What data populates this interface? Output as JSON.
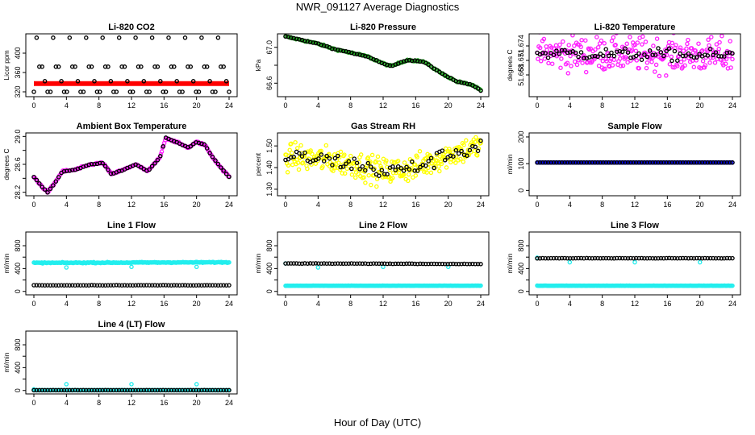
{
  "figure": {
    "title": "NWR_091127  Average Diagnostics",
    "xlabel": "Hour of Day (UTC)"
  },
  "chart_data": [
    {
      "type": "scatter",
      "title": "Li-820 CO2",
      "ylabel": "Licor ppm",
      "xlim": [
        0,
        24
      ],
      "xticks": [
        0,
        4,
        8,
        12,
        16,
        20,
        24
      ],
      "ylim": [
        310,
        440
      ],
      "yticks": [
        320,
        360,
        400
      ],
      "ytick_labels": [
        "320",
        "360",
        "400"
      ],
      "series": [
        {
          "color": "#ff0000",
          "style": "thickline",
          "pattern": "flat",
          "x": [
            0,
            24
          ],
          "y": [
            337,
            337
          ]
        },
        {
          "color": "#000000",
          "style": "points",
          "pattern": "levels",
          "x_start": 0,
          "x_end": 24,
          "n": 72,
          "levels": [
            320,
            342,
            372,
            432
          ],
          "y_offset": 0
        }
      ]
    },
    {
      "type": "scatter",
      "title": "Li-820 Pressure",
      "ylabel": "kPa",
      "xlim": [
        0,
        24
      ],
      "xticks": [
        0,
        4,
        8,
        12,
        16,
        20,
        24
      ],
      "ylim": [
        66.45,
        67.15
      ],
      "yticks": [
        66.6,
        66.8,
        67.0
      ],
      "ytick_labels": [
        "66.6",
        "",
        "67.0"
      ],
      "series": [
        {
          "color": "#22aa22",
          "style": "points",
          "pattern": "dense",
          "n": 150,
          "noise": 0.008,
          "curve": [
            [
              0,
              67.12
            ],
            [
              2,
              67.08
            ],
            [
              4,
              67.04
            ],
            [
              6,
              66.98
            ],
            [
              8,
              66.94
            ],
            [
              10,
              66.9
            ],
            [
              12,
              66.82
            ],
            [
              13,
              66.79
            ],
            [
              15,
              66.86
            ],
            [
              17,
              66.84
            ],
            [
              19,
              66.72
            ],
            [
              21,
              66.62
            ],
            [
              23,
              66.58
            ],
            [
              24,
              66.52
            ]
          ]
        },
        {
          "color": "#000000",
          "style": "points",
          "pattern": "curve",
          "n": 72,
          "noise": 0.004,
          "curve": [
            [
              0,
              67.12
            ],
            [
              2,
              67.08
            ],
            [
              4,
              67.04
            ],
            [
              6,
              66.98
            ],
            [
              8,
              66.94
            ],
            [
              10,
              66.9
            ],
            [
              12,
              66.82
            ],
            [
              13,
              66.79
            ],
            [
              15,
              66.86
            ],
            [
              17,
              66.84
            ],
            [
              19,
              66.72
            ],
            [
              21,
              66.62
            ],
            [
              23,
              66.58
            ],
            [
              24,
              66.52
            ]
          ]
        }
      ]
    },
    {
      "type": "scatter",
      "title": "Li-820 Temperature",
      "ylabel": "degrees C",
      "xlim": [
        0,
        24
      ],
      "xticks": [
        0,
        4,
        8,
        12,
        16,
        20,
        24
      ],
      "ylim": [
        51.6635,
        51.6765
      ],
      "yticks": [
        51.668,
        51.671,
        51.674
      ],
      "ytick_labels": [
        "51.668",
        "51.671",
        "51.674"
      ],
      "series": [
        {
          "color": "#ff22ff",
          "style": "points",
          "pattern": "dense",
          "n": 260,
          "noise": 0.0035,
          "curve": [
            [
              0,
              51.6725
            ],
            [
              24,
              51.672
            ]
          ]
        },
        {
          "color": "#000000",
          "style": "points",
          "pattern": "curve",
          "n": 72,
          "noise": 0.0012,
          "curve": [
            [
              0,
              51.6725
            ],
            [
              24,
              51.672
            ]
          ]
        }
      ]
    },
    {
      "type": "scatter",
      "title": "Ambient Box Temperature",
      "ylabel": "degrees C",
      "xlim": [
        0,
        24
      ],
      "xticks": [
        0,
        4,
        8,
        12,
        16,
        20,
        24
      ],
      "ylim": [
        28.15,
        29.05
      ],
      "yticks": [
        28.2,
        28.4,
        28.6,
        28.8,
        29.0
      ],
      "ytick_labels": [
        "28.2",
        "",
        "28.6",
        "",
        "29.0"
      ],
      "series": [
        {
          "color": "#ff22ff",
          "style": "points",
          "pattern": "dense",
          "n": 230,
          "noise": 0.012,
          "curve": [
            [
              0,
              28.42
            ],
            [
              1,
              28.28
            ],
            [
              1.7,
              28.2
            ],
            [
              2.5,
              28.32
            ],
            [
              3.5,
              28.5
            ],
            [
              5,
              28.52
            ],
            [
              7,
              28.6
            ],
            [
              8.5,
              28.62
            ],
            [
              9.5,
              28.46
            ],
            [
              11,
              28.52
            ],
            [
              12.5,
              28.6
            ],
            [
              14,
              28.5
            ],
            [
              15.5,
              28.7
            ],
            [
              16.2,
              28.98
            ],
            [
              17.5,
              28.92
            ],
            [
              19,
              28.84
            ],
            [
              20,
              28.92
            ],
            [
              21,
              28.88
            ],
            [
              22,
              28.7
            ],
            [
              23,
              28.55
            ],
            [
              24,
              28.42
            ]
          ]
        },
        {
          "color": "#000000",
          "style": "points",
          "pattern": "curve",
          "n": 72,
          "noise": 0.005,
          "curve": [
            [
              0,
              28.42
            ],
            [
              1,
              28.28
            ],
            [
              1.7,
              28.2
            ],
            [
              2.5,
              28.32
            ],
            [
              3.5,
              28.5
            ],
            [
              5,
              28.52
            ],
            [
              7,
              28.6
            ],
            [
              8.5,
              28.62
            ],
            [
              9.5,
              28.46
            ],
            [
              11,
              28.52
            ],
            [
              12.5,
              28.6
            ],
            [
              14,
              28.5
            ],
            [
              15.5,
              28.7
            ],
            [
              16.2,
              28.98
            ],
            [
              17.5,
              28.92
            ],
            [
              19,
              28.84
            ],
            [
              20,
              28.92
            ],
            [
              21,
              28.88
            ],
            [
              22,
              28.7
            ],
            [
              23,
              28.55
            ],
            [
              24,
              28.42
            ]
          ]
        }
      ]
    },
    {
      "type": "scatter",
      "title": "Gas Stream RH",
      "ylabel": "percent",
      "xlim": [
        0,
        24
      ],
      "xticks": [
        0,
        4,
        8,
        12,
        16,
        20,
        24
      ],
      "ylim": [
        1.27,
        1.56
      ],
      "yticks": [
        1.3,
        1.4,
        1.5
      ],
      "ytick_labels": [
        "1.30",
        "1.40",
        "1.50"
      ],
      "series": [
        {
          "color": "#ffff00",
          "style": "points",
          "pattern": "dense",
          "n": 280,
          "noise": 0.06,
          "curve": [
            [
              0,
              1.45
            ],
            [
              4,
              1.44
            ],
            [
              8,
              1.42
            ],
            [
              12,
              1.38
            ],
            [
              16,
              1.4
            ],
            [
              20,
              1.46
            ],
            [
              24,
              1.5
            ]
          ]
        },
        {
          "color": "#000000",
          "style": "points",
          "pattern": "curve",
          "n": 72,
          "noise": 0.035,
          "curve": [
            [
              0,
              1.45
            ],
            [
              4,
              1.44
            ],
            [
              8,
              1.42
            ],
            [
              12,
              1.38
            ],
            [
              16,
              1.4
            ],
            [
              20,
              1.46
            ],
            [
              24,
              1.5
            ]
          ]
        }
      ]
    },
    {
      "type": "scatter",
      "title": "Sample Flow",
      "ylabel": "ml/min",
      "xlim": [
        0,
        24
      ],
      "xticks": [
        0,
        4,
        8,
        12,
        16,
        20,
        24
      ],
      "ylim": [
        -20,
        215
      ],
      "yticks": [
        0,
        100,
        200
      ],
      "ytick_labels": [
        "0",
        "100",
        "200"
      ],
      "series": [
        {
          "color": "#0000ff",
          "style": "points",
          "pattern": "dense",
          "n": 150,
          "noise": 0,
          "curve": [
            [
              0,
              104
            ],
            [
              24,
              104
            ]
          ]
        },
        {
          "color": "#000000",
          "style": "points",
          "pattern": "curve",
          "n": 72,
          "noise": 0,
          "curve": [
            [
              0,
              104
            ],
            [
              24,
              104
            ]
          ]
        }
      ]
    },
    {
      "type": "scatter",
      "title": "Line 1 Flow",
      "ylabel": "ml/min",
      "xlim": [
        0,
        24
      ],
      "xticks": [
        0,
        4,
        8,
        12,
        16,
        20,
        24
      ],
      "ylim": [
        -60,
        1040
      ],
      "yticks": [
        0,
        200,
        400,
        600,
        800
      ],
      "ytick_labels": [
        "0",
        "",
        "400",
        "",
        "800"
      ],
      "series": [
        {
          "color": "#22eeee",
          "style": "points",
          "pattern": "dense",
          "n": 200,
          "noise": 8,
          "curve": [
            [
              0,
              500
            ],
            [
              24,
              510
            ]
          ],
          "dips": [
            [
              4,
              420
            ],
            [
              12,
              430
            ],
            [
              20,
              430
            ]
          ]
        },
        {
          "color": "#000000",
          "style": "points",
          "pattern": "curve",
          "n": 72,
          "noise": 2,
          "curve": [
            [
              0,
              108
            ],
            [
              24,
              108
            ]
          ]
        }
      ]
    },
    {
      "type": "scatter",
      "title": "Line 2 Flow",
      "ylabel": "ml/min",
      "xlim": [
        0,
        24
      ],
      "xticks": [
        0,
        4,
        8,
        12,
        16,
        20,
        24
      ],
      "ylim": [
        -60,
        1040
      ],
      "yticks": [
        0,
        200,
        400,
        600,
        800
      ],
      "ytick_labels": [
        "0",
        "",
        "400",
        "",
        "800"
      ],
      "series": [
        {
          "color": "#22eeee",
          "style": "points",
          "pattern": "dense",
          "n": 200,
          "noise": 2,
          "curve": [
            [
              0,
              100
            ],
            [
              24,
              100
            ]
          ],
          "dips": [
            [
              0,
              490
            ],
            [
              4,
              420
            ],
            [
              12,
              430
            ],
            [
              20,
              430
            ]
          ]
        },
        {
          "color": "#000000",
          "style": "points",
          "pattern": "curve",
          "n": 72,
          "noise": 3,
          "curve": [
            [
              0,
              490
            ],
            [
              24,
              480
            ]
          ]
        }
      ]
    },
    {
      "type": "scatter",
      "title": "Line 3 Flow",
      "ylabel": "ml/min",
      "xlim": [
        0,
        24
      ],
      "xticks": [
        0,
        4,
        8,
        12,
        16,
        20,
        24
      ],
      "ylim": [
        -60,
        1040
      ],
      "yticks": [
        0,
        200,
        400,
        600,
        800
      ],
      "ytick_labels": [
        "0",
        "",
        "400",
        "",
        "800"
      ],
      "series": [
        {
          "color": "#22eeee",
          "style": "points",
          "pattern": "dense",
          "n": 200,
          "noise": 2,
          "curve": [
            [
              0,
              100
            ],
            [
              24,
              100
            ]
          ],
          "dips": [
            [
              0,
              590
            ],
            [
              4,
              510
            ],
            [
              12,
              510
            ],
            [
              20,
              510
            ]
          ]
        },
        {
          "color": "#000000",
          "style": "points",
          "pattern": "curve",
          "n": 72,
          "noise": 3,
          "curve": [
            [
              0,
              580
            ],
            [
              24,
              580
            ]
          ]
        }
      ]
    },
    {
      "type": "scatter",
      "title": "Line 4 (LT) Flow",
      "ylabel": "ml/min",
      "xlim": [
        0,
        24
      ],
      "xticks": [
        0,
        4,
        8,
        12,
        16,
        20,
        24
      ],
      "ylim": [
        -60,
        1040
      ],
      "yticks": [
        0,
        200,
        400,
        600,
        800
      ],
      "ytick_labels": [
        "0",
        "",
        "400",
        "",
        "800"
      ],
      "series": [
        {
          "color": "#22eeee",
          "style": "points",
          "pattern": "dense",
          "n": 200,
          "noise": 1,
          "curve": [
            [
              0,
              5
            ],
            [
              24,
              5
            ]
          ],
          "dips": [
            [
              0,
              20
            ],
            [
              4,
              110
            ],
            [
              12,
              110
            ],
            [
              20,
              110
            ]
          ]
        },
        {
          "color": "#000000",
          "style": "points",
          "pattern": "curve",
          "n": 72,
          "noise": 1,
          "curve": [
            [
              0,
              5
            ],
            [
              24,
              5
            ]
          ]
        }
      ]
    }
  ]
}
